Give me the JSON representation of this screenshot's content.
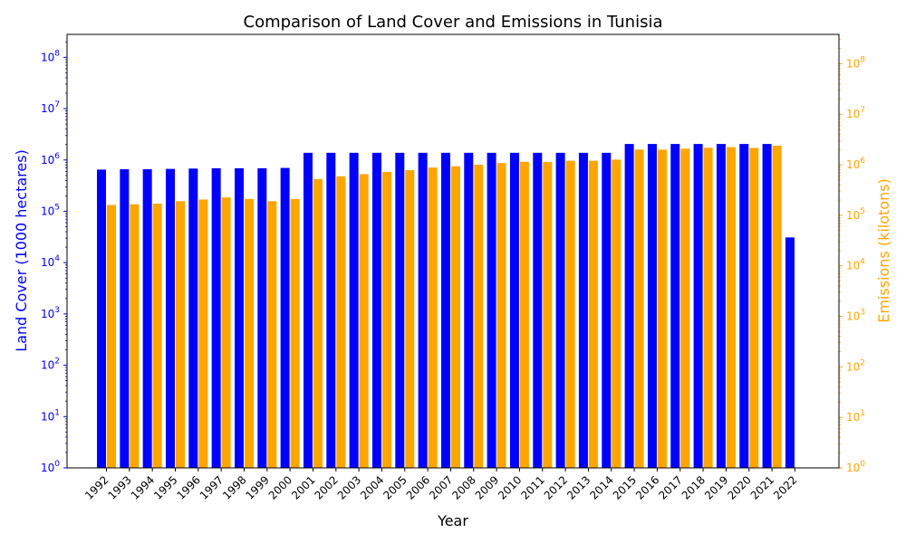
{
  "chart_data": {
    "type": "bar",
    "title": "Comparison of Land Cover and Emissions in Tunisia",
    "xlabel": "Year",
    "ylabel_left": "Land Cover (1000 hectares)",
    "ylabel_right": "Emissions (kilotons)",
    "y_scale": "log",
    "ylim_left": [
      1,
      280000000
    ],
    "ylim_right": [
      1,
      380000000
    ],
    "grid": false,
    "categories": [
      "1992",
      "1993",
      "1994",
      "1995",
      "1996",
      "1997",
      "1998",
      "1999",
      "2000",
      "2001",
      "2002",
      "2003",
      "2004",
      "2005",
      "2006",
      "2007",
      "2008",
      "2009",
      "2010",
      "2011",
      "2012",
      "2013",
      "2014",
      "2015",
      "2016",
      "2017",
      "2018",
      "2019",
      "2020",
      "2021",
      "2022"
    ],
    "series": [
      {
        "axis": "left",
        "color": "#0000ff",
        "values": [
          650000,
          660000,
          660000,
          670000,
          680000,
          690000,
          690000,
          690000,
          700000,
          1380000,
          1380000,
          1380000,
          1380000,
          1380000,
          1380000,
          1380000,
          1380000,
          1380000,
          1380000,
          1380000,
          1380000,
          1380000,
          1380000,
          2050000,
          2050000,
          2050000,
          2050000,
          2050000,
          2050000,
          2050000,
          31000
        ]
      },
      {
        "axis": "right",
        "color": "#ffa500",
        "values": [
          160000,
          165000,
          170000,
          190000,
          205000,
          225000,
          210000,
          190000,
          210000,
          520000,
          590000,
          650000,
          720000,
          780000,
          880000,
          930000,
          1000000,
          1080000,
          1140000,
          1130000,
          1200000,
          1200000,
          1260000,
          2000000,
          1990000,
          2080000,
          2170000,
          2230000,
          2150000,
          2380000,
          null
        ]
      }
    ],
    "yticks_left": [
      "10^0",
      "10^1",
      "10^2",
      "10^3",
      "10^4",
      "10^5",
      "10^6",
      "10^7",
      "10^8"
    ],
    "yticks_right": [
      "10^0",
      "10^1",
      "10^2",
      "10^3",
      "10^4",
      "10^5",
      "10^6",
      "10^7",
      "10^8"
    ]
  }
}
